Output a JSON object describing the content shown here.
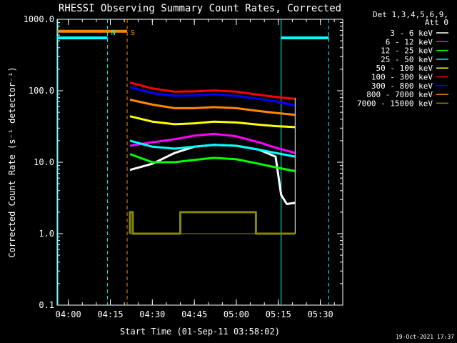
{
  "chart_data": {
    "type": "line",
    "title": "RHESSI Observing Summary Count Rates, Corrected",
    "ylabel": "Corrected Count Rate (s⁻¹ detector⁻¹)",
    "xlabel": "Start Time (01-Sep-11 03:58:02)",
    "y_scale": "log",
    "ylim": [
      0.1,
      1000.0
    ],
    "y_ticks": [
      "0.1",
      "1.0",
      "10.0",
      "100.0",
      "1000.0"
    ],
    "xlim": [
      "03:56:00",
      "05:38:00"
    ],
    "x_ticks": [
      "04:00",
      "04:15",
      "04:30",
      "04:45",
      "05:00",
      "05:15",
      "05:30"
    ],
    "legend": {
      "header": [
        "Det 1,3,4,5,6,9,",
        "Att 0"
      ],
      "placement": "right"
    },
    "series": [
      {
        "name": "3 - 6 keV",
        "color": "#ffffff",
        "x": [
          "04:22",
          "04:30",
          "04:38",
          "04:45",
          "04:52",
          "05:00",
          "05:08",
          "05:14",
          "05:16",
          "05:18",
          "05:21"
        ],
        "y": [
          7.8,
          9.5,
          13.5,
          16.5,
          17.5,
          17.0,
          15.0,
          12.0,
          3.5,
          2.6,
          2.7
        ]
      },
      {
        "name": "6 - 12 keV",
        "color": "#ff00ff",
        "x": [
          "04:22",
          "04:30",
          "04:38",
          "04:45",
          "04:52",
          "05:00",
          "05:08",
          "05:14",
          "05:21"
        ],
        "y": [
          17.0,
          19.0,
          21.0,
          23.5,
          25.0,
          23.0,
          19.0,
          16.0,
          13.5
        ]
      },
      {
        "name": "12 - 25 keV",
        "color": "#00ff00",
        "x": [
          "04:22",
          "04:30",
          "04:38",
          "04:45",
          "04:52",
          "05:00",
          "05:08",
          "05:14",
          "05:21"
        ],
        "y": [
          13.0,
          10.0,
          10.0,
          10.8,
          11.5,
          11.0,
          9.5,
          8.5,
          7.5
        ]
      },
      {
        "name": "25 - 50 keV",
        "color": "#00ffff",
        "x": [
          "04:22",
          "04:30",
          "04:38",
          "04:45",
          "04:52",
          "05:00",
          "05:08",
          "05:14",
          "05:21"
        ],
        "y": [
          20.0,
          16.5,
          15.5,
          16.5,
          17.5,
          17.0,
          15.0,
          13.5,
          12.0
        ]
      },
      {
        "name": "50 - 100 keV",
        "color": "#ffff00",
        "x": [
          "04:22",
          "04:30",
          "04:38",
          "04:45",
          "04:52",
          "05:00",
          "05:08",
          "05:14",
          "05:21"
        ],
        "y": [
          44.0,
          37.0,
          34.0,
          35.0,
          37.0,
          36.0,
          33.5,
          32.0,
          31.0
        ]
      },
      {
        "name": "100 - 300 keV",
        "color": "#ff0000",
        "x": [
          "04:22",
          "04:30",
          "04:38",
          "04:45",
          "04:52",
          "05:00",
          "05:08",
          "05:14",
          "05:21"
        ],
        "y": [
          130.0,
          108.0,
          97.0,
          98.0,
          101.0,
          97.0,
          88.0,
          82.0,
          77.0
        ]
      },
      {
        "name": "300 - 800 keV",
        "color": "#0000ff",
        "x": [
          "04:22",
          "04:30",
          "04:38",
          "04:45",
          "04:52",
          "05:00",
          "05:08",
          "05:14",
          "05:21"
        ],
        "y": [
          112.0,
          93.0,
          85.0,
          86.0,
          89.0,
          85.0,
          77.0,
          71.0,
          62.0
        ]
      },
      {
        "name": "800 - 7000 keV",
        "color": "#ff8800",
        "x": [
          "04:22",
          "04:30",
          "04:38",
          "04:45",
          "04:52",
          "05:00",
          "05:08",
          "05:14",
          "05:21"
        ],
        "y": [
          75.0,
          64.0,
          57.0,
          57.0,
          59.0,
          57.0,
          52.0,
          49.0,
          46.0
        ]
      },
      {
        "name": "7000 - 15000 keV",
        "color": "#888800",
        "x": [
          "04:22",
          "04:22",
          "04:23",
          "04:23",
          "04:40",
          "04:40",
          "05:07",
          "05:07",
          "05:21"
        ],
        "y": [
          1.0,
          2.0,
          2.0,
          1.0,
          1.0,
          2.0,
          2.0,
          1.0,
          1.0
        ]
      }
    ],
    "markers": [
      {
        "label": "N",
        "color": "#00ffff",
        "style": "dashed",
        "x": "04:14"
      },
      {
        "label": "S",
        "color": "#ff8800",
        "style": "dashed",
        "x": "04:21"
      },
      {
        "label": "",
        "color": "#00ffff",
        "style": "solid",
        "x": "05:16"
      },
      {
        "label": "",
        "color": "#00ffff",
        "style": "dashed",
        "x": "05:33"
      }
    ],
    "bars": [
      {
        "label": "N",
        "color": "#00ffff",
        "x": [
          "03:56:00",
          "04:14:00"
        ],
        "y": 550
      },
      {
        "label": "S",
        "color": "#ff8800",
        "x": [
          "03:56:00",
          "04:21:00"
        ],
        "y": 680
      },
      {
        "label": "",
        "color": "#00ffff",
        "x": [
          "05:16:00",
          "05:33:00"
        ],
        "y": 550
      }
    ]
  },
  "footer": {
    "timestamp": "19-Oct-2021 17:37"
  }
}
